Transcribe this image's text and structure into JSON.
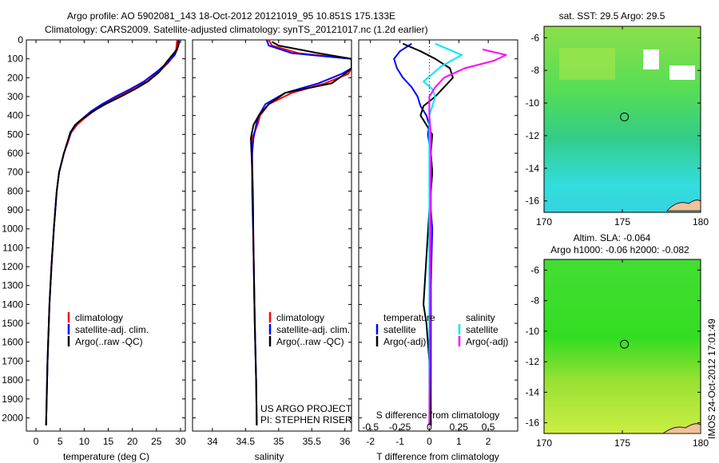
{
  "header": {
    "title_line1": "Argo profile: AO 5902081_143 18-Oct-2012 20121019_95 10.851S 175.133E",
    "title_line2": "Climatology: CARS2009. Satellite-adjusted climatology: synTS_20121017.nc (1.2d earlier)"
  },
  "colors": {
    "climatology": "#ff0000",
    "satellite": "#0000ff",
    "argo": "#000000",
    "salinity_satellite": "#00e5ff",
    "salinity_argo": "#ff00ff",
    "map_green": "#66dd33",
    "map_cyan": "#33dddd"
  },
  "chart_data": [
    {
      "type": "line",
      "name": "temperature-profile",
      "xlabel": "temperature (deg C)",
      "xlim": [
        -2,
        31
      ],
      "ylim": [
        2070,
        0
      ],
      "xticks": [
        "0",
        "5",
        "10",
        "15",
        "20",
        "25",
        "30"
      ],
      "yticks": [
        "0",
        "100",
        "200",
        "300",
        "400",
        "500",
        "600",
        "700",
        "800",
        "900",
        "1000",
        "1100",
        "1200",
        "1300",
        "1400",
        "1500",
        "1600",
        "1700",
        "1800",
        "1900",
        "2000"
      ],
      "legend": [
        "climatology",
        "satellite-adj. clim.",
        "Argo(..raw -QC)"
      ],
      "series": [
        {
          "name": "climatology",
          "x": [
            29.3,
            29.2,
            29.1,
            28.6,
            27.5,
            25.5,
            23,
            20.3,
            17,
            14.2,
            11.8,
            9.8,
            8.5,
            7.3,
            6.5,
            5.8,
            5.3,
            4.8,
            4.3,
            3.7,
            3.2,
            2.8,
            2.4,
            2.1
          ],
          "y": [
            0,
            25,
            50,
            80,
            120,
            170,
            220,
            260,
            300,
            340,
            380,
            420,
            450,
            490,
            550,
            600,
            650,
            700,
            800,
            1000,
            1200,
            1400,
            1700,
            2040
          ]
        },
        {
          "name": "satellite-adj. clim.",
          "x": [
            29.6,
            29.5,
            29.3,
            28.8,
            27.3,
            25,
            22.4,
            19.6,
            16.5,
            13.7,
            11.3,
            9.5,
            8.2,
            7.2,
            6.4,
            5.8,
            5.3,
            4.8,
            4.3,
            3.7,
            3.2,
            2.8,
            2.4,
            2.1
          ],
          "y": [
            0,
            25,
            50,
            80,
            120,
            170,
            220,
            260,
            300,
            340,
            380,
            420,
            450,
            490,
            550,
            600,
            650,
            700,
            800,
            1000,
            1200,
            1400,
            1700,
            2040
          ]
        },
        {
          "name": "Argo(..raw -QC)",
          "x": [
            29.7,
            29.6,
            29.3,
            28.3,
            27,
            25.6,
            23.2,
            20.6,
            17.6,
            14.4,
            11.7,
            9.5,
            8.1,
            7.1,
            6.4,
            5.8,
            5.3,
            4.8,
            4.3,
            3.7,
            3.2,
            2.8,
            2.4,
            2.1
          ],
          "y": [
            5,
            25,
            50,
            80,
            120,
            170,
            220,
            260,
            300,
            340,
            380,
            420,
            450,
            490,
            550,
            600,
            650,
            700,
            800,
            1000,
            1200,
            1400,
            1700,
            2040
          ]
        }
      ]
    },
    {
      "type": "line",
      "name": "salinity-profile",
      "xlabel": "salinity",
      "xlim": [
        33.7,
        36.1
      ],
      "ylim": [
        2070,
        0
      ],
      "xticks": [
        "34",
        "34.5",
        "35",
        "35.5",
        "36"
      ],
      "legend": [
        "climatology",
        "satellite-adj. clim.",
        "Argo(..raw -QC)"
      ],
      "annotation_line1": "US ARGO PROJECT",
      "annotation_line2": "PI: STEPHEN RISER",
      "series": [
        {
          "name": "climatology",
          "x": [
            34.85,
            34.9,
            35.3,
            36.1,
            36.1,
            36.05,
            35.7,
            35.2,
            34.85,
            34.72,
            34.68,
            34.6,
            34.6,
            34.61,
            34.62,
            34.64,
            34.66,
            34.67
          ],
          "y": [
            0,
            30,
            70,
            100,
            150,
            180,
            230,
            280,
            340,
            400,
            450,
            520,
            600,
            800,
            1100,
            1500,
            1800,
            2040
          ]
        },
        {
          "name": "satellite-adj. clim.",
          "x": [
            34.82,
            34.85,
            35.2,
            36.1,
            36.1,
            35.95,
            35.6,
            35.1,
            34.8,
            34.7,
            34.66,
            34.62,
            34.6,
            34.6,
            34.62,
            34.64,
            34.66,
            34.67
          ],
          "y": [
            0,
            30,
            70,
            100,
            150,
            180,
            230,
            280,
            340,
            400,
            450,
            520,
            600,
            800,
            1100,
            1500,
            1800,
            2040
          ]
        },
        {
          "name": "Argo(..raw -QC)",
          "x": [
            34.9,
            35.0,
            35.6,
            36.1,
            36.1,
            36.0,
            35.8,
            35.1,
            34.85,
            34.7,
            34.62,
            34.58,
            34.59,
            34.61,
            34.62,
            34.64,
            34.66,
            34.67
          ],
          "y": [
            10,
            30,
            70,
            100,
            150,
            180,
            230,
            280,
            340,
            400,
            450,
            520,
            600,
            800,
            1100,
            1500,
            1800,
            2040
          ]
        }
      ]
    },
    {
      "type": "line",
      "name": "difference-profile",
      "xlabel_bottom": "T difference from climatology",
      "xlabel_top": "S difference from climatology",
      "xlim": [
        -2.4,
        3.0
      ],
      "ylim": [
        2070,
        0
      ],
      "xticks": [
        "-2",
        "-1",
        "0",
        "1",
        "2"
      ],
      "xticks_top": [
        "-0.5",
        "-0.25",
        "0",
        "0.25",
        "0.5"
      ],
      "legend_temperature_heading": "temperature",
      "legend_salinity_heading": "salinity",
      "legend_satellite": "satellite",
      "legend_argo": "Argo(-adj)",
      "series": [
        {
          "name": "temperature satellite",
          "x": [
            -0.6,
            -1.0,
            -1.2,
            -1.1,
            -0.9,
            -0.6,
            -0.4,
            -0.3,
            -0.1,
            0,
            -0.05,
            0.05,
            0.1,
            0.05,
            0.05,
            0.1,
            0.05,
            0.05,
            0.05
          ],
          "y": [
            20,
            60,
            100,
            150,
            200,
            250,
            300,
            350,
            400,
            450,
            500,
            600,
            700,
            800,
            900,
            1000,
            1300,
            1700,
            2040
          ]
        },
        {
          "name": "temperature Argo(-adj)",
          "x": [
            -0.9,
            -0.3,
            0.2,
            0.7,
            0.8,
            0.5,
            0.2,
            -0.2,
            -0.3,
            -0.1,
            0.1,
            0.05,
            0.1,
            0.05,
            0,
            -0.2,
            -0.1,
            0,
            0.05
          ],
          "y": [
            20,
            60,
            100,
            150,
            200,
            250,
            300,
            350,
            400,
            450,
            500,
            600,
            700,
            800,
            900,
            1400,
            1500,
            1700,
            2040
          ]
        },
        {
          "name": "salinity satellite",
          "x": [
            0.2,
            1.1,
            0.4,
            -0.2,
            0.1,
            0.2,
            0.1,
            0,
            0,
            0,
            0,
            0,
            0
          ],
          "y": [
            20,
            80,
            140,
            220,
            260,
            300,
            350,
            400,
            450,
            500,
            600,
            800,
            2040
          ]
        },
        {
          "name": "salinity Argo(-adj)",
          "x": [
            1.8,
            2.6,
            2.2,
            1.2,
            0.5,
            0.2,
            0,
            0,
            0.05,
            0.05,
            0
          ],
          "y": [
            50,
            80,
            110,
            150,
            200,
            250,
            300,
            400,
            500,
            600,
            2040
          ]
        }
      ]
    },
    {
      "type": "heatmap",
      "name": "sst-map",
      "title": "sat. SST: 29.5 Argo: 29.5",
      "xlim": [
        170,
        180
      ],
      "ylim": [
        -16.7,
        -5.3
      ],
      "xticks": [
        "170",
        "175",
        "180"
      ],
      "yticks": [
        "-6",
        "-8",
        "-10",
        "-12",
        "-14",
        "-16"
      ],
      "marker": [
        175.133,
        -10.851
      ]
    },
    {
      "type": "heatmap",
      "name": "sla-map",
      "title_line1": "Altim. SLA: -0.064",
      "title_line2": "Argo h1000: -0.06 h2000: -0.082",
      "xlim": [
        170,
        180
      ],
      "ylim": [
        -16.7,
        -5.3
      ],
      "xticks": [
        "170",
        "175",
        "180"
      ],
      "yticks": [
        "-6",
        "-8",
        "-10",
        "-12",
        "-14",
        "-16"
      ],
      "marker": [
        175.133,
        -10.851
      ]
    }
  ],
  "footer": {
    "timestamp": "IMOS 24-Oct-2012 17:01:49"
  }
}
